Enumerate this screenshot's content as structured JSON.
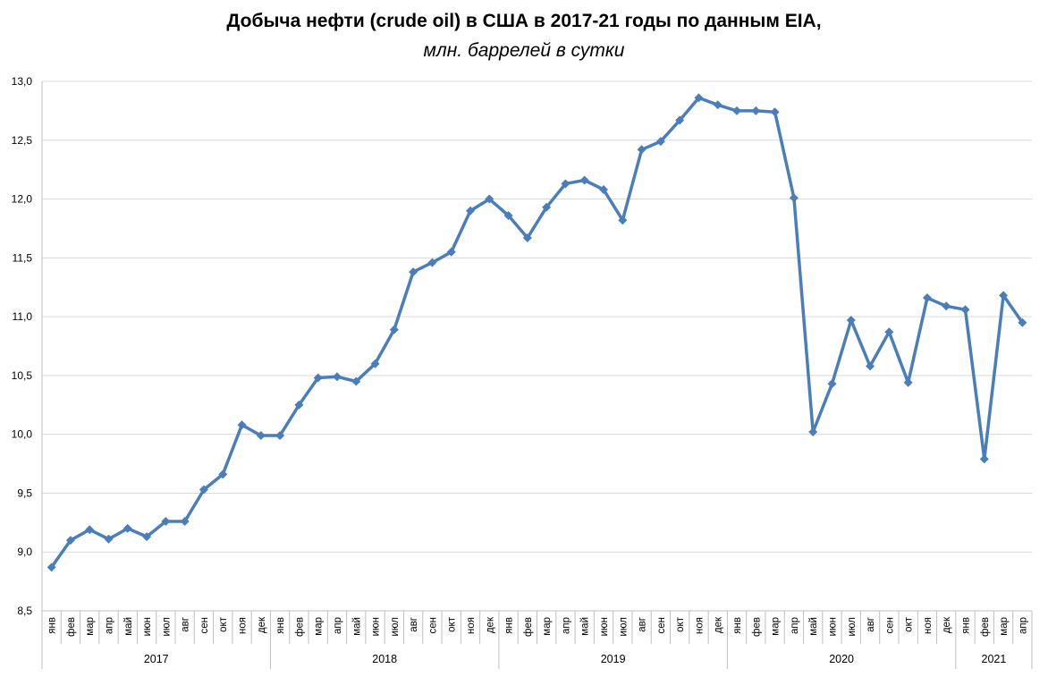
{
  "chart_data": {
    "type": "line",
    "title": "Добыча нефти (crude oil) в США в 2017-21 годы по данным EIA,",
    "subtitle": "млн. баррелей в сутки",
    "xlabel": "",
    "ylabel": "",
    "ylim": [
      8.5,
      13.0
    ],
    "y_ticks": [
      "8,5",
      "9,0",
      "9,5",
      "10,0",
      "10,5",
      "11,0",
      "11,5",
      "12,0",
      "12,5",
      "13,0"
    ],
    "grid": "horizontal",
    "legend": "none",
    "line_color": "#4a7ebb",
    "years": [
      {
        "label": "2017",
        "months": 12
      },
      {
        "label": "2018",
        "months": 12
      },
      {
        "label": "2019",
        "months": 12
      },
      {
        "label": "2020",
        "months": 12
      },
      {
        "label": "2021",
        "months": 4
      }
    ],
    "categories": [
      "янв",
      "фев",
      "мар",
      "апр",
      "май",
      "июн",
      "июл",
      "авг",
      "сен",
      "окт",
      "ноя",
      "дек",
      "янв",
      "фев",
      "мар",
      "апр",
      "май",
      "июн",
      "июл",
      "авг",
      "сен",
      "окт",
      "ноя",
      "дек",
      "янв",
      "фев",
      "мар",
      "апр",
      "май",
      "июн",
      "июл",
      "авг",
      "сен",
      "окт",
      "ноя",
      "дек",
      "янв",
      "фев",
      "мар",
      "апр",
      "май",
      "июн",
      "июл",
      "авг",
      "сен",
      "окт",
      "ноя",
      "дек",
      "янв",
      "фев",
      "мар",
      "апр"
    ],
    "series": [
      {
        "values": [
          8.87,
          9.1,
          9.19,
          9.11,
          9.2,
          9.13,
          9.26,
          9.26,
          9.53,
          9.66,
          10.08,
          9.99,
          9.99,
          10.25,
          10.48,
          10.49,
          10.45,
          10.6,
          10.89,
          11.38,
          11.46,
          11.55,
          11.9,
          12.0,
          11.86,
          11.67,
          11.93,
          12.13,
          12.16,
          12.08,
          11.82,
          12.42,
          12.49,
          12.67,
          12.86,
          12.8,
          12.75,
          12.75,
          12.74,
          12.01,
          10.02,
          10.43,
          10.97,
          10.58,
          10.87,
          10.44,
          11.16,
          11.09,
          11.06,
          9.79,
          11.18,
          10.95
        ]
      }
    ]
  }
}
